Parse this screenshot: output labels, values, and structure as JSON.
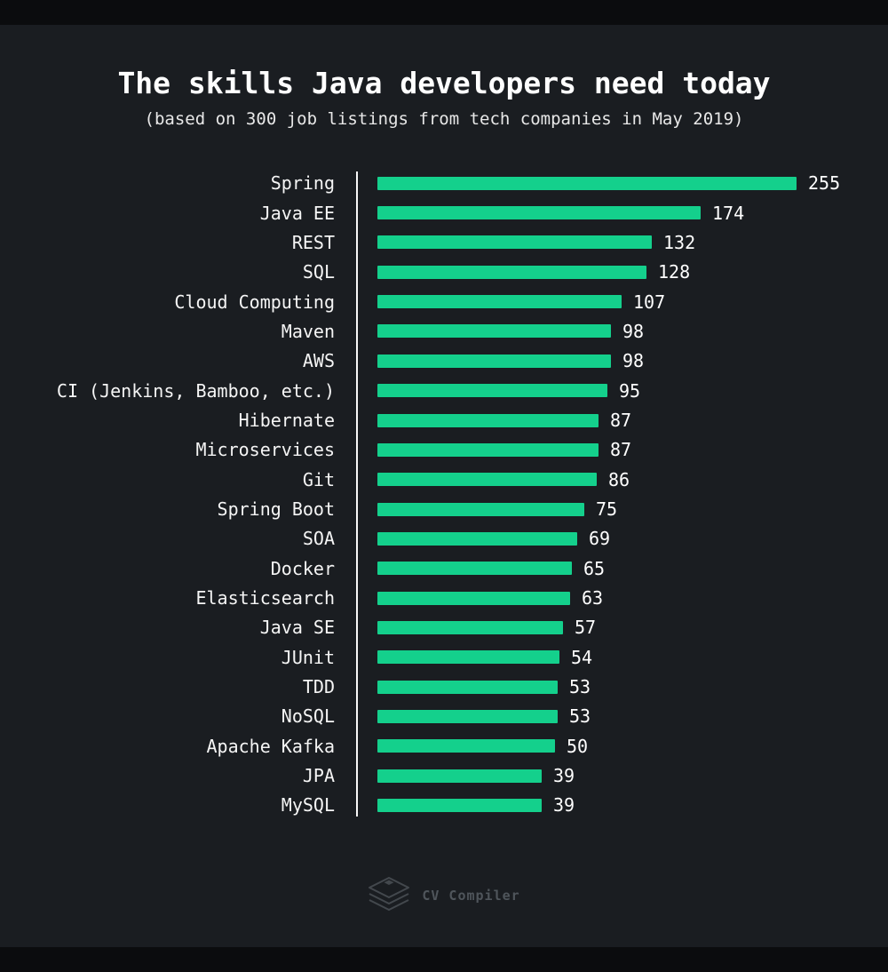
{
  "page": {
    "background_color": "#1a1d21",
    "border_color": "#0b0c0e"
  },
  "header": {
    "title": "The skills Java developers need today",
    "subtitle": "(based on 300 job listings from tech companies in May 2019)"
  },
  "chart_data": {
    "type": "bar",
    "orientation": "horizontal",
    "title": "The skills Java developers need today",
    "subtitle": "(based on 300 job listings from tech companies in May 2019)",
    "categories": [
      "Spring",
      "Java EE",
      "REST",
      "SQL",
      "Cloud Computing",
      "Maven",
      "AWS",
      "CI (Jenkins, Bamboo, etc.)",
      "Hibernate",
      "Microservices",
      "Git",
      "Spring Boot",
      "SOA",
      "Docker",
      "Elasticsearch",
      "Java SE",
      "JUnit",
      "TDD",
      "NoSQL",
      "Apache Kafka",
      "JPA",
      "MySQL"
    ],
    "values": [
      255,
      174,
      132,
      128,
      107,
      98,
      98,
      95,
      87,
      87,
      86,
      75,
      69,
      65,
      63,
      57,
      54,
      53,
      53,
      50,
      39,
      39
    ],
    "value_labels_shown": true,
    "grid": false,
    "legend": false,
    "xlabel": "",
    "ylabel": "",
    "bar_color": "#14d08c",
    "axis_line_color": "#f8f8f8",
    "category_label_color": "#f5f5f5",
    "value_label_color": "#ffffff",
    "note": "bar lengths are not proportional to values; rendered length approximates original infographic scaling"
  },
  "footer": {
    "logo_text": "CV Compiler",
    "logo_text_color": "#4f555b",
    "logo_icon_color": "#43484d",
    "logo_icon": "layers-stack-icon"
  }
}
